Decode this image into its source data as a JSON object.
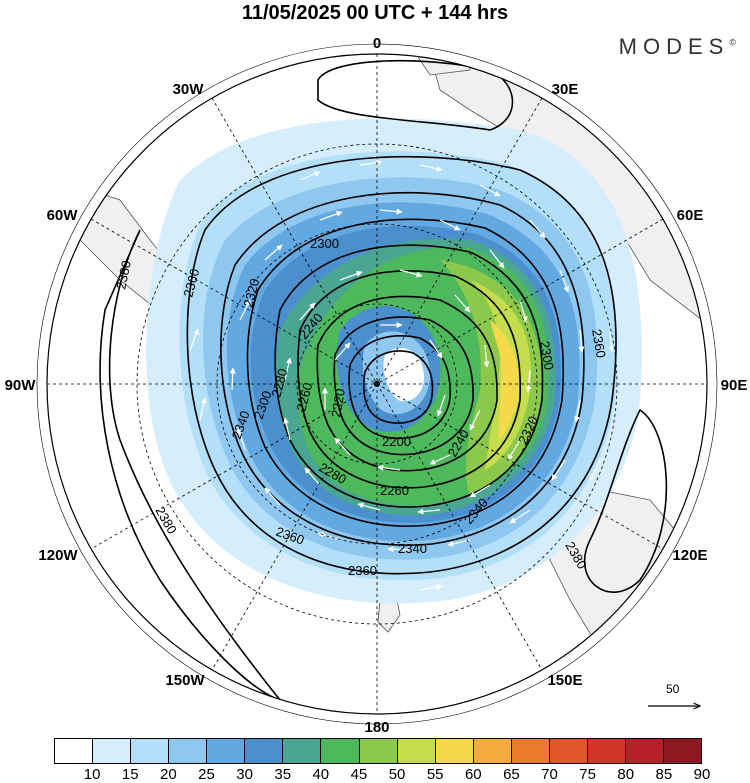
{
  "header": {
    "title": "11/05/2025  00 UTC  + 144 hrs",
    "brand": "MODES",
    "brand_mark": "©"
  },
  "map": {
    "projection": "polar-stereographic-south",
    "longitude_labels": [
      "0",
      "30E",
      "60E",
      "90E",
      "120E",
      "150E",
      "180",
      "150W",
      "120W",
      "90W",
      "60W",
      "30W"
    ],
    "contour_labels": [
      "2380",
      "2380",
      "2380",
      "2360",
      "2360",
      "2360",
      "2360",
      "2340",
      "2340",
      "2340",
      "2320",
      "2320",
      "2300",
      "2300",
      "2300",
      "2280",
      "2280",
      "2260",
      "2260",
      "2240",
      "2240",
      "2220",
      "2200"
    ],
    "wind_scale_label": "50",
    "colors": {
      "land": "#f0f0f0",
      "coast": "#555555",
      "contour": "#000000",
      "vector": "#ffffff"
    }
  },
  "legend": {
    "labels": [
      "10",
      "15",
      "20",
      "25",
      "30",
      "35",
      "40",
      "45",
      "50",
      "55",
      "60",
      "65",
      "70",
      "75",
      "80",
      "85",
      "90"
    ],
    "colors": [
      "#ffffff",
      "#d6eefc",
      "#b3e0f8",
      "#8ec8f0",
      "#62a9e2",
      "#4b8fcf",
      "#4aa593",
      "#4db85c",
      "#8bc84b",
      "#c5dc4d",
      "#f5d94a",
      "#f3ab3e",
      "#ed7a2f",
      "#e2552a",
      "#d23428",
      "#b61f26",
      "#8e1820"
    ]
  }
}
